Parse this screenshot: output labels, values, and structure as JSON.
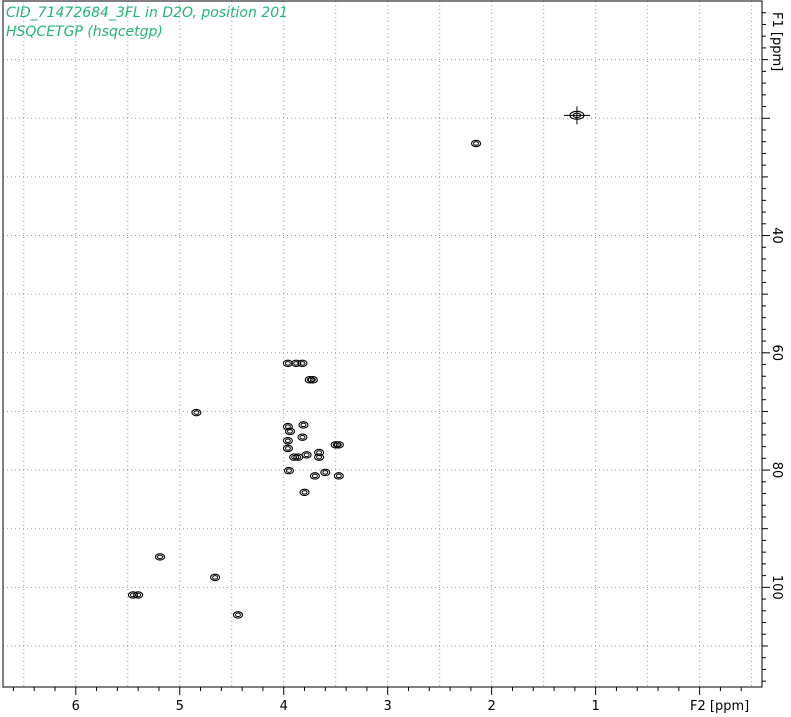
{
  "header": {
    "title_line1": "CID_71472684_3FL in D2O, position 201",
    "title_line2": "HSQCETGP (hsqcetgp)"
  },
  "colors": {
    "title": "#22b573",
    "contour": "#000000",
    "grid": "#9a9a9a"
  },
  "chart_data": {
    "type": "scatter",
    "subtype": "2D NMR HSQC contour plot",
    "xlabel": "F2 [ppm]",
    "ylabel": "F1 [ppm]",
    "xlim": [
      6.7,
      -0.6
    ],
    "ylim": [
      0,
      117
    ],
    "x_reversed": true,
    "y_reversed": true,
    "x_ticks": [
      6,
      5,
      4,
      3,
      2,
      1
    ],
    "y_ticks": [
      40,
      60,
      80,
      100
    ],
    "grid": true,
    "grid_style": "dotted",
    "legend": "none",
    "peaks": [
      {
        "x": 1.18,
        "y": 19.5
      },
      {
        "x": 2.15,
        "y": 24.3
      },
      {
        "x": 3.96,
        "y": 61.8
      },
      {
        "x": 3.88,
        "y": 61.8
      },
      {
        "x": 3.82,
        "y": 61.8
      },
      {
        "x": 3.75,
        "y": 64.6
      },
      {
        "x": 3.72,
        "y": 64.6
      },
      {
        "x": 4.84,
        "y": 70.2
      },
      {
        "x": 3.96,
        "y": 72.6
      },
      {
        "x": 3.94,
        "y": 73.4
      },
      {
        "x": 3.81,
        "y": 72.3
      },
      {
        "x": 3.82,
        "y": 74.4
      },
      {
        "x": 3.96,
        "y": 75.0
      },
      {
        "x": 3.96,
        "y": 76.3
      },
      {
        "x": 3.9,
        "y": 77.8
      },
      {
        "x": 3.86,
        "y": 77.8
      },
      {
        "x": 3.78,
        "y": 77.4
      },
      {
        "x": 3.66,
        "y": 77.0
      },
      {
        "x": 3.66,
        "y": 77.8
      },
      {
        "x": 3.5,
        "y": 75.7
      },
      {
        "x": 3.47,
        "y": 75.7
      },
      {
        "x": 3.95,
        "y": 80.1
      },
      {
        "x": 3.6,
        "y": 80.4
      },
      {
        "x": 3.7,
        "y": 81.0
      },
      {
        "x": 3.47,
        "y": 81.0
      },
      {
        "x": 3.8,
        "y": 83.8
      },
      {
        "x": 5.19,
        "y": 94.8
      },
      {
        "x": 4.66,
        "y": 98.3
      },
      {
        "x": 5.45,
        "y": 101.3
      },
      {
        "x": 5.4,
        "y": 101.3
      },
      {
        "x": 4.44,
        "y": 104.7
      }
    ]
  }
}
